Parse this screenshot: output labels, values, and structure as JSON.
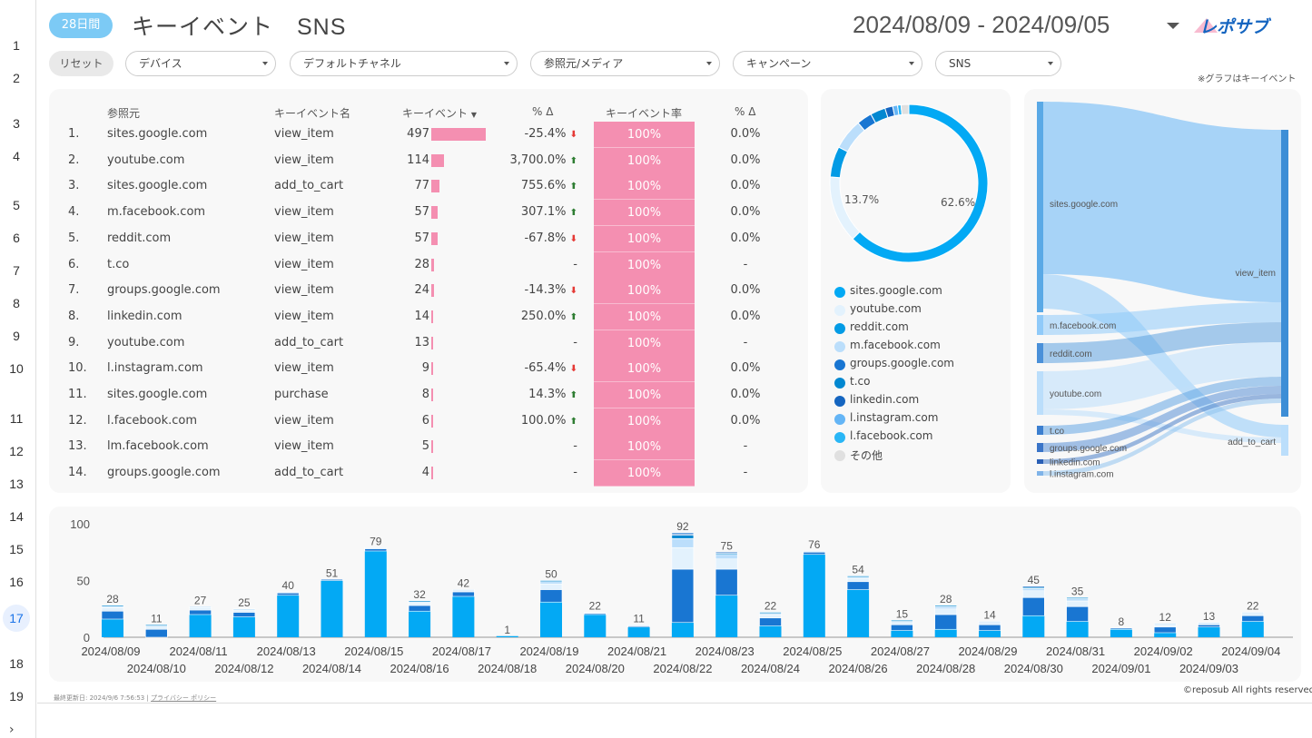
{
  "rail": {
    "numbers": [
      "1",
      "2",
      "3",
      "4",
      "5",
      "6",
      "7",
      "8",
      "9",
      "10",
      "11",
      "12",
      "13",
      "14",
      "15",
      "16",
      "17",
      "18",
      "19"
    ],
    "active": "17"
  },
  "header": {
    "period_badge": "28日間",
    "title": "キーイベント　SNS",
    "date_range": "2024/08/09 - 2024/09/05",
    "logo_alt": "レポサブ"
  },
  "filters": {
    "reset": "リセット",
    "items": [
      "デバイス",
      "デフォルトチャネル",
      "参照元/メディア",
      "キャンペーン",
      "SNS"
    ]
  },
  "note": "※グラフはキーイベント",
  "table": {
    "headers": {
      "source": "参照元",
      "event_name": "キーイベント名",
      "events": "キーイベント",
      "delta": "% Δ",
      "rate": "キーイベント率",
      "rate_delta": "% Δ"
    },
    "sort_icon": "sort-desc-icon",
    "rows": [
      {
        "n": "1.",
        "source": "sites.google.com",
        "event": "view_item",
        "count": "497",
        "v": 497,
        "delta": "-25.4%",
        "dir": "down",
        "rate": "100%",
        "rd": "0.0%"
      },
      {
        "n": "2.",
        "source": "youtube.com",
        "event": "view_item",
        "count": "114",
        "v": 114,
        "delta": "3,700.0%",
        "dir": "up",
        "rate": "100%",
        "rd": "0.0%"
      },
      {
        "n": "3.",
        "source": "sites.google.com",
        "event": "add_to_cart",
        "count": "77",
        "v": 77,
        "delta": "755.6%",
        "dir": "up",
        "rate": "100%",
        "rd": "0.0%"
      },
      {
        "n": "4.",
        "source": "m.facebook.com",
        "event": "view_item",
        "count": "57",
        "v": 57,
        "delta": "307.1%",
        "dir": "up",
        "rate": "100%",
        "rd": "0.0%"
      },
      {
        "n": "5.",
        "source": "reddit.com",
        "event": "view_item",
        "count": "57",
        "v": 57,
        "delta": "-67.8%",
        "dir": "down",
        "rate": "100%",
        "rd": "0.0%"
      },
      {
        "n": "6.",
        "source": "t.co",
        "event": "view_item",
        "count": "28",
        "v": 28,
        "delta": "-",
        "dir": "",
        "rate": "100%",
        "rd": "-"
      },
      {
        "n": "7.",
        "source": "groups.google.com",
        "event": "view_item",
        "count": "24",
        "v": 24,
        "delta": "-14.3%",
        "dir": "down",
        "rate": "100%",
        "rd": "0.0%"
      },
      {
        "n": "8.",
        "source": "linkedin.com",
        "event": "view_item",
        "count": "14",
        "v": 14,
        "delta": "250.0%",
        "dir": "up",
        "rate": "100%",
        "rd": "0.0%"
      },
      {
        "n": "9.",
        "source": "youtube.com",
        "event": "add_to_cart",
        "count": "13",
        "v": 13,
        "delta": "-",
        "dir": "",
        "rate": "100%",
        "rd": "-"
      },
      {
        "n": "10.",
        "source": "l.instagram.com",
        "event": "view_item",
        "count": "9",
        "v": 9,
        "delta": "-65.4%",
        "dir": "down",
        "rate": "100%",
        "rd": "0.0%"
      },
      {
        "n": "11.",
        "source": "sites.google.com",
        "event": "purchase",
        "count": "8",
        "v": 8,
        "delta": "14.3%",
        "dir": "up",
        "rate": "100%",
        "rd": "0.0%"
      },
      {
        "n": "12.",
        "source": "l.facebook.com",
        "event": "view_item",
        "count": "6",
        "v": 6,
        "delta": "100.0%",
        "dir": "up",
        "rate": "100%",
        "rd": "0.0%"
      },
      {
        "n": "13.",
        "source": "lm.facebook.com",
        "event": "view_item",
        "count": "5",
        "v": 5,
        "delta": "-",
        "dir": "",
        "rate": "100%",
        "rd": "-"
      },
      {
        "n": "14.",
        "source": "groups.google.com",
        "event": "add_to_cart",
        "count": "4",
        "v": 4,
        "delta": "-",
        "dir": "",
        "rate": "100%",
        "rd": "-"
      }
    ]
  },
  "donut": {
    "label_major": "62.6%",
    "label_minor": "13.7%",
    "slices": [
      {
        "name": "sites.google.com",
        "value": 62.6,
        "color": "#03a9f4"
      },
      {
        "name": "youtube.com",
        "value": 13.7,
        "color": "#e3f2fd"
      },
      {
        "name": "reddit.com",
        "value": 6.3,
        "color": "#039be5"
      },
      {
        "name": "m.facebook.com",
        "value": 6.3,
        "color": "#bbdefb"
      },
      {
        "name": "groups.google.com",
        "value": 3.1,
        "color": "#1976d2"
      },
      {
        "name": "t.co",
        "value": 3.1,
        "color": "#0288d1"
      },
      {
        "name": "linkedin.com",
        "value": 1.6,
        "color": "#1565c0"
      },
      {
        "name": "l.instagram.com",
        "value": 1.0,
        "color": "#64b5f6"
      },
      {
        "name": "l.facebook.com",
        "value": 0.7,
        "color": "#29b6f6"
      },
      {
        "name": "その他",
        "value": 1.6,
        "color": "#e0e0e0"
      }
    ]
  },
  "sankey": {
    "sources": [
      "sites.google.com",
      "m.facebook.com",
      "reddit.com",
      "youtube.com",
      "t.co",
      "groups.google.com",
      "linkedin.com",
      "l.instagram.com"
    ],
    "targets": [
      "view_item",
      "add_to_cart"
    ]
  },
  "chart_data": {
    "type": "bar",
    "stacked": true,
    "ylim": [
      0,
      100
    ],
    "yticks": [
      "100",
      "50",
      "0"
    ],
    "dates": [
      "2024/08/09",
      "2024/08/10",
      "2024/08/11",
      "2024/08/12",
      "2024/08/13",
      "2024/08/14",
      "2024/08/15",
      "2024/08/16",
      "2024/08/17",
      "2024/08/18",
      "2024/08/19",
      "2024/08/20",
      "2024/08/21",
      "2024/08/22",
      "2024/08/23",
      "2024/08/24",
      "2024/08/25",
      "2024/08/26",
      "2024/08/27",
      "2024/08/28",
      "2024/08/29",
      "2024/08/30",
      "2024/08/31",
      "2024/09/01",
      "2024/09/02",
      "2024/09/03",
      "2024/09/04"
    ],
    "totals": [
      28,
      11,
      27,
      25,
      40,
      51,
      79,
      32,
      42,
      1,
      50,
      22,
      11,
      92,
      75,
      22,
      76,
      54,
      15,
      28,
      14,
      45,
      35,
      8,
      12,
      13,
      22
    ],
    "total_labels": [
      "28",
      "11",
      "27",
      "25",
      "40",
      "51",
      "79",
      "32",
      "42",
      "1",
      "50",
      "22",
      "11",
      "92",
      "75",
      "22",
      "76",
      "54",
      "15",
      "28",
      "14",
      "45",
      "35",
      "8",
      "12",
      "13",
      "22"
    ],
    "main_series": [
      16,
      0,
      20,
      18,
      37,
      50,
      76,
      23,
      36,
      1,
      31,
      20,
      9,
      13,
      37,
      10,
      73,
      42,
      6,
      7,
      6,
      19,
      14,
      7,
      4,
      9,
      14
    ],
    "main_color": "#03a9f4",
    "other_colors": [
      "#1976d2",
      "#e3f2fd",
      "#bbdefb",
      "#0288d1",
      "#1565c0"
    ]
  },
  "footer": {
    "updated": "最終更新日: 2024/9/6 7:56:53 | ",
    "privacy": "プライバシー ポリシー",
    "copyright": "©reposub All rights reserved."
  }
}
